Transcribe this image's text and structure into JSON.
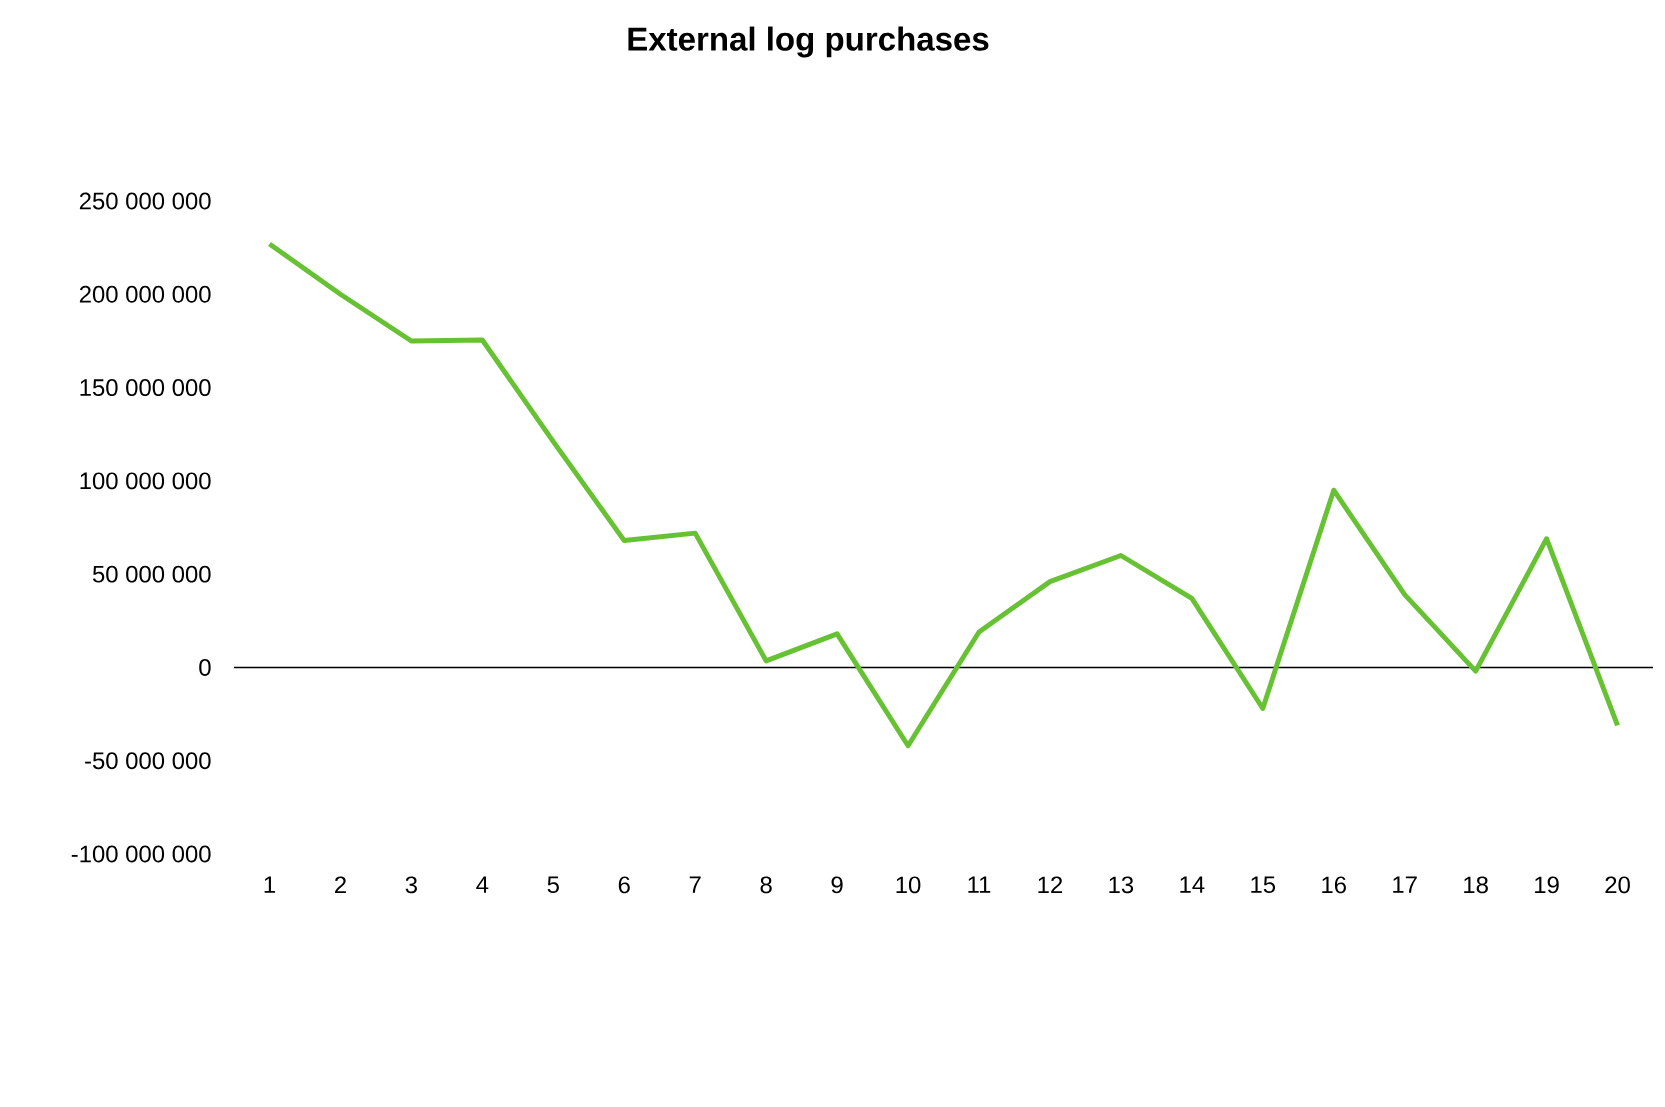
{
  "chart_data": {
    "type": "line",
    "title": "External log purchases",
    "categories": [
      "1",
      "2",
      "3",
      "4",
      "5",
      "6",
      "7",
      "8",
      "9",
      "10",
      "11",
      "12",
      "13",
      "14",
      "15",
      "16",
      "17",
      "18",
      "19",
      "20"
    ],
    "series": [
      {
        "color": "#66c133",
        "values": [
          227000000,
          200000000,
          175000000,
          175500000,
          121000000,
          68000000,
          72000000,
          3500000,
          18000000,
          -42000000,
          19000000,
          46000000,
          60000000,
          37000000,
          -22000000,
          95000000,
          39000000,
          -2000000,
          69000000,
          -31000000
        ]
      }
    ],
    "ylim": [
      -100000000,
      250000000
    ],
    "yticks": [
      {
        "value": -100000000,
        "label": "-100 000 000"
      },
      {
        "value": -50000000,
        "label": "-50 000 000"
      },
      {
        "value": 0,
        "label": "0"
      },
      {
        "value": 50000000,
        "label": "50 000 000"
      },
      {
        "value": 100000000,
        "label": "100 000 000"
      },
      {
        "value": 150000000,
        "label": "150 000 000"
      },
      {
        "value": 200000000,
        "label": "200 000 000"
      },
      {
        "value": 250000000,
        "label": "250 000 000"
      }
    ],
    "marker": "none",
    "line_style": "solid"
  }
}
